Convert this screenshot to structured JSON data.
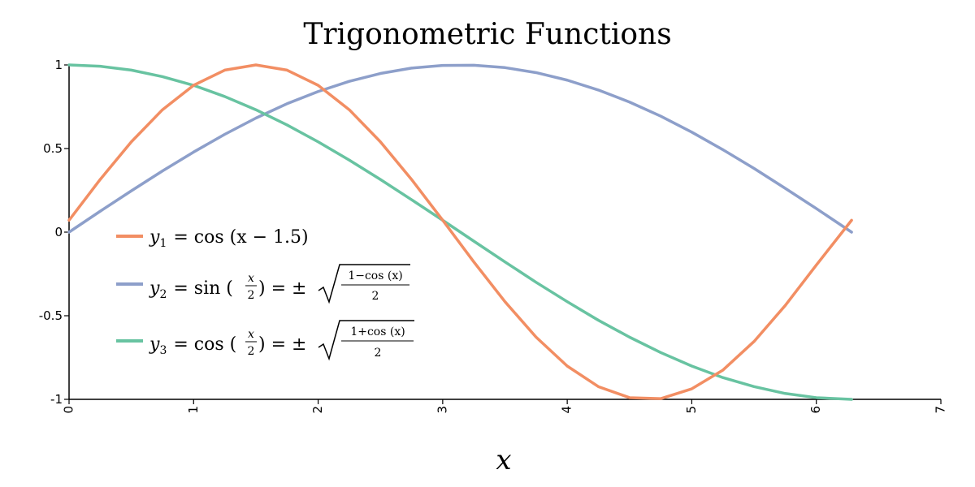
{
  "chart_data": {
    "type": "line",
    "title": "Trigonometric Functions",
    "xlabel": "x",
    "ylabel": "",
    "xlim": [
      0,
      7
    ],
    "ylim": [
      -1,
      1
    ],
    "x_ticks": [
      "0",
      "1",
      "2",
      "3",
      "4",
      "5",
      "6",
      "7"
    ],
    "y_ticks": [
      "1",
      "0.5",
      "0",
      "-0.5",
      "-1"
    ],
    "legend_position": "center-left",
    "series": [
      {
        "name": "y1 = cos (x − 1.5)",
        "color": "#f28e63",
        "x": [
          0,
          0.25,
          0.5,
          0.75,
          1.0,
          1.25,
          1.5,
          1.75,
          2.0,
          2.25,
          2.5,
          2.75,
          3.0,
          3.25,
          3.5,
          3.75,
          4.0,
          4.25,
          4.5,
          4.75,
          5.0,
          5.25,
          5.5,
          5.75,
          6.0,
          6.283
        ],
        "y": [
          0.071,
          0.315,
          0.54,
          0.732,
          0.878,
          0.969,
          1.0,
          0.969,
          0.878,
          0.732,
          0.54,
          0.315,
          0.071,
          -0.178,
          -0.416,
          -0.628,
          -0.801,
          -0.924,
          -0.99,
          -0.996,
          -0.937,
          -0.825,
          -0.654,
          -0.439,
          -0.197,
          0.071
        ]
      },
      {
        "name": "y2 = sin (x/2) = ±√((1−cos (x))/2)",
        "color": "#8d9fca",
        "x": [
          0,
          0.25,
          0.5,
          0.75,
          1.0,
          1.25,
          1.5,
          1.75,
          2.0,
          2.25,
          2.5,
          2.75,
          3.0,
          3.25,
          3.5,
          3.75,
          4.0,
          4.25,
          4.5,
          4.75,
          5.0,
          5.25,
          5.5,
          5.75,
          6.0,
          6.283
        ],
        "y": [
          0.0,
          0.125,
          0.247,
          0.366,
          0.479,
          0.585,
          0.682,
          0.768,
          0.841,
          0.902,
          0.949,
          0.981,
          0.997,
          0.998,
          0.984,
          0.954,
          0.909,
          0.85,
          0.778,
          0.694,
          0.598,
          0.493,
          0.381,
          0.262,
          0.141,
          0.0
        ]
      },
      {
        "name": "y3 = cos (x/2) = ±√((1+cos (x))/2)",
        "color": "#68c3a1",
        "x": [
          0,
          0.25,
          0.5,
          0.75,
          1.0,
          1.25,
          1.5,
          1.75,
          2.0,
          2.25,
          2.5,
          2.75,
          3.0,
          3.25,
          3.5,
          3.75,
          4.0,
          4.25,
          4.5,
          4.75,
          5.0,
          5.25,
          5.5,
          5.75,
          6.0,
          6.283
        ],
        "y": [
          1.0,
          0.992,
          0.969,
          0.93,
          0.878,
          0.811,
          0.732,
          0.641,
          0.54,
          0.431,
          0.315,
          0.194,
          0.071,
          -0.054,
          -0.178,
          -0.3,
          -0.416,
          -0.527,
          -0.628,
          -0.72,
          -0.801,
          -0.87,
          -0.924,
          -0.965,
          -0.99,
          -1.0
        ]
      }
    ]
  },
  "legend": {
    "y1": {
      "var": "y",
      "sub": "1",
      "expr": "= cos (x − 1.5)"
    },
    "y2": {
      "var": "y",
      "sub": "2",
      "lhs": "= sin (",
      "frac_num": "x",
      "frac_den": "2",
      "rhs": ") = ±",
      "root_num": "1−cos (x)",
      "root_den": "2"
    },
    "y3": {
      "var": "y",
      "sub": "3",
      "lhs": "= cos (",
      "frac_num": "x",
      "frac_den": "2",
      "rhs": ") = ±",
      "root_num": "1+cos (x)",
      "root_den": "2"
    }
  }
}
